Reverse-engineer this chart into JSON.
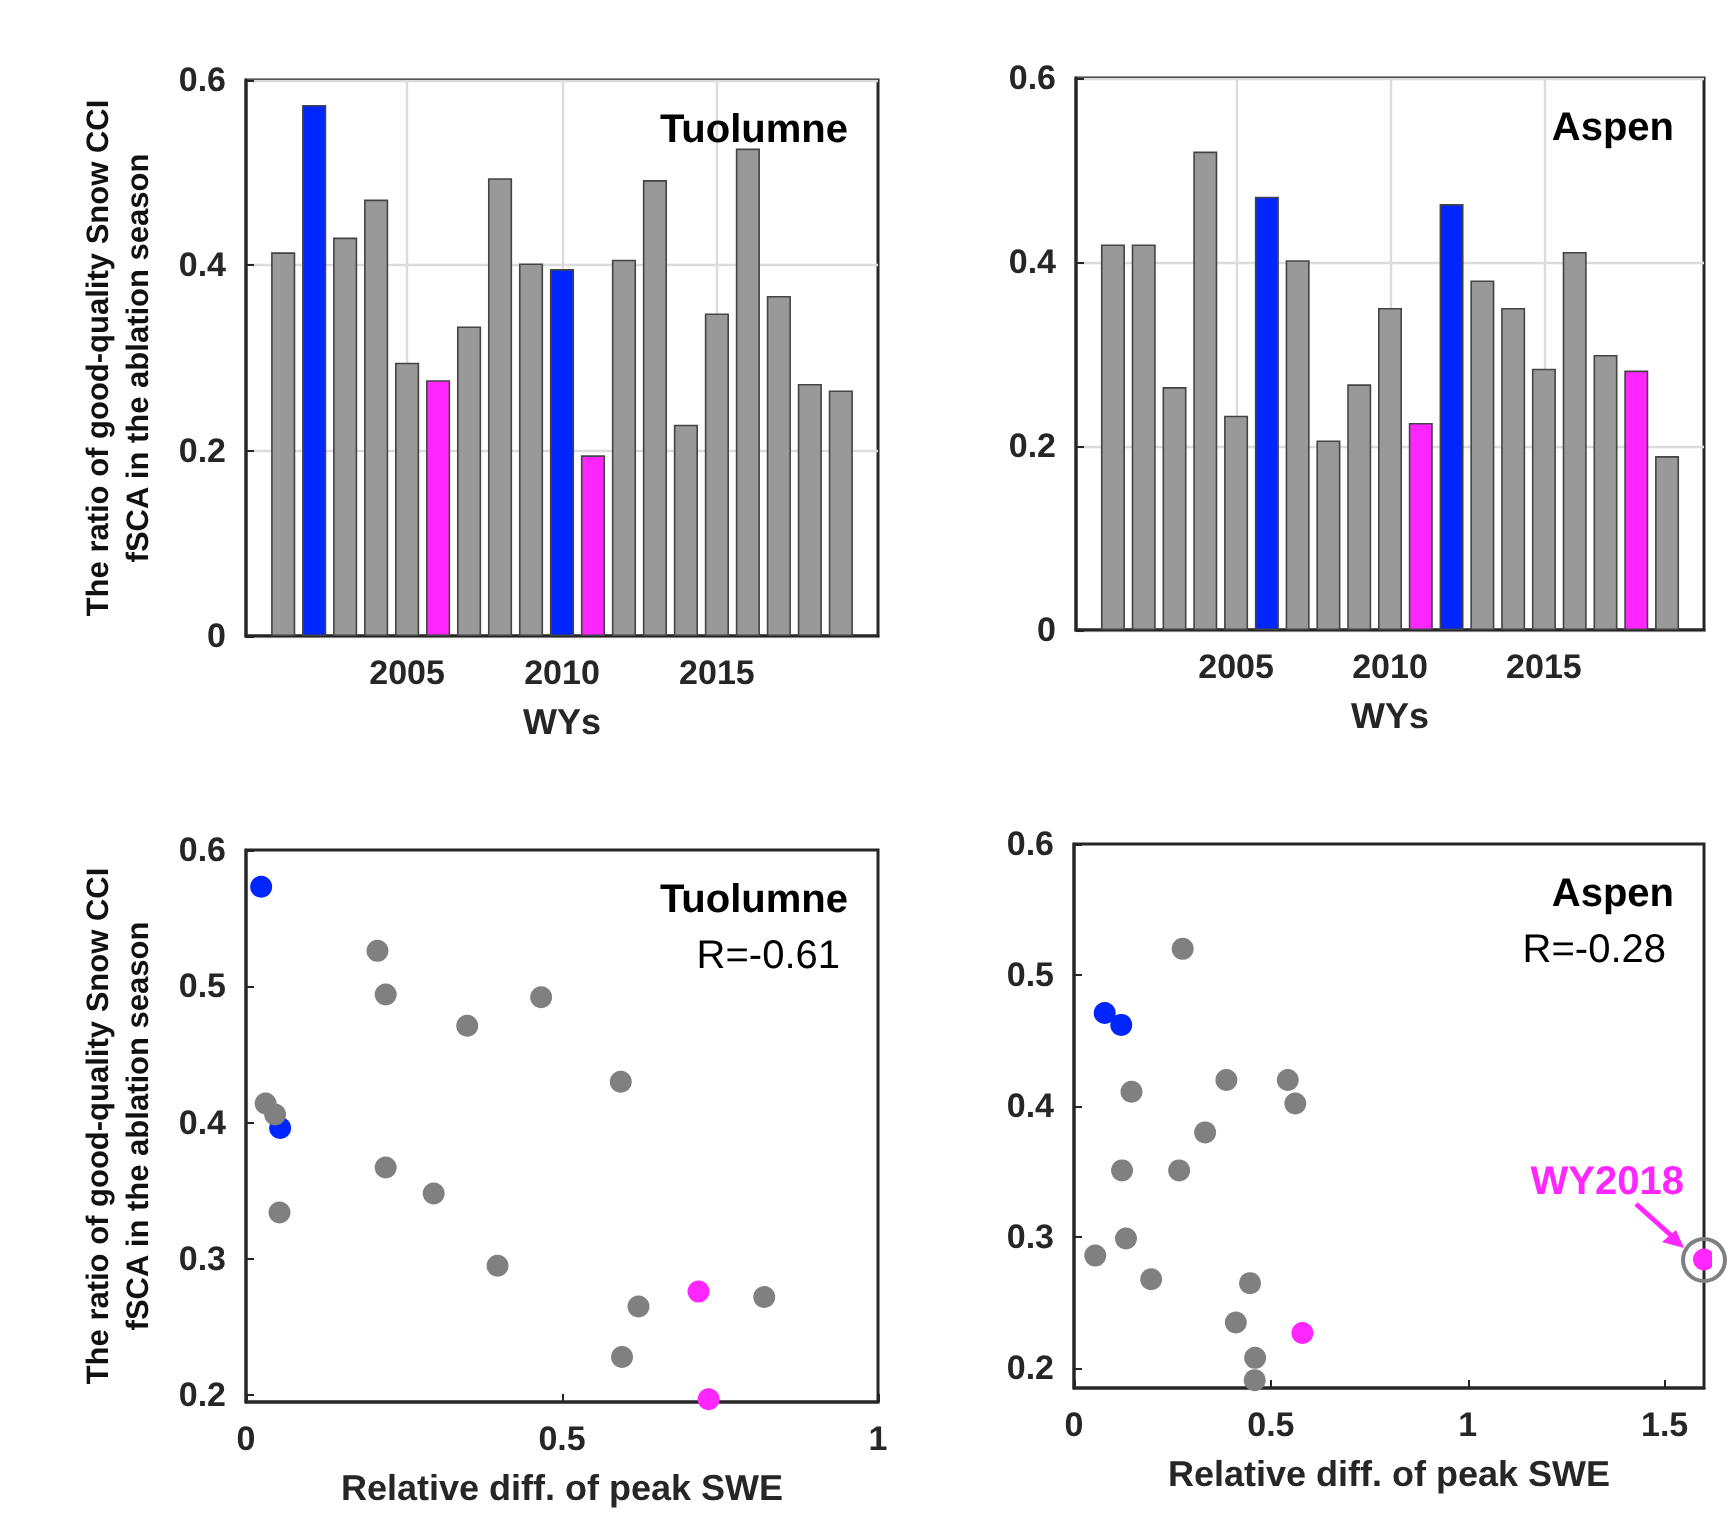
{
  "chart_data": [
    {
      "type": "bar",
      "title": "Tuolumne",
      "xlabel": "WYs",
      "ylabel": "The ratio of good-quality Snow CCI fSCA in the ablation season",
      "x": [
        2001,
        2002,
        2003,
        2004,
        2005,
        2006,
        2007,
        2008,
        2009,
        2010,
        2011,
        2012,
        2013,
        2014,
        2015,
        2016,
        2017,
        2018,
        2019
      ],
      "values": [
        0.414,
        0.573,
        0.43,
        0.471,
        0.295,
        0.276,
        0.334,
        0.494,
        0.402,
        0.396,
        0.195,
        0.406,
        0.492,
        0.228,
        0.348,
        0.526,
        0.367,
        0.272,
        0.265
      ],
      "colors": [
        "#999999",
        "#0026ff",
        "#999999",
        "#999999",
        "#999999",
        "#ff26ff",
        "#999999",
        "#999999",
        "#999999",
        "#0026ff",
        "#ff26ff",
        "#999999",
        "#999999",
        "#999999",
        "#999999",
        "#999999",
        "#999999",
        "#999999",
        "#999999"
      ],
      "xlim": [
        1999.8,
        2020.2
      ],
      "xticks": [
        2005,
        2010,
        2015
      ],
      "ylim": [
        0,
        0.6
      ],
      "yticks": [
        0,
        0.2,
        0.4,
        0.6
      ],
      "grid": true
    },
    {
      "type": "bar",
      "title": "Aspen",
      "xlabel": "WYs",
      "x": [
        2001,
        2002,
        2003,
        2004,
        2005,
        2006,
        2007,
        2008,
        2009,
        2010,
        2011,
        2012,
        2013,
        2014,
        2015,
        2016,
        2017,
        2018,
        2019
      ],
      "values": [
        0.419,
        0.419,
        0.264,
        0.52,
        0.233,
        0.471,
        0.402,
        0.206,
        0.267,
        0.35,
        0.225,
        0.463,
        0.38,
        0.35,
        0.284,
        0.411,
        0.299,
        0.282,
        0.189
      ],
      "colors": [
        "#999999",
        "#999999",
        "#999999",
        "#999999",
        "#999999",
        "#0026ff",
        "#999999",
        "#999999",
        "#999999",
        "#999999",
        "#ff26ff",
        "#0026ff",
        "#999999",
        "#999999",
        "#999999",
        "#999999",
        "#999999",
        "#ff26ff",
        "#999999"
      ],
      "xlim": [
        1999.8,
        2020.2
      ],
      "xticks": [
        2005,
        2010,
        2015
      ],
      "ylim": [
        0,
        0.6
      ],
      "yticks": [
        0,
        0.2,
        0.4,
        0.6
      ],
      "grid": true
    },
    {
      "type": "scatter",
      "title": "Tuolumne",
      "annotations": [
        "R=-0.61"
      ],
      "xlabel": "Relative diff. of peak SWE",
      "ylabel": "The ratio of good-quality Snow CCI fSCA in the ablation season",
      "x": [
        0.024,
        0.054,
        0.208,
        0.221,
        0.35,
        0.467,
        0.593,
        0.031,
        0.04,
        0.046,
        0.221,
        0.297,
        0.053,
        0.398,
        0.621,
        0.595,
        0.82,
        0.716,
        0.732
      ],
      "values": [
        0.573,
        0.396,
        0.526,
        0.494,
        0.471,
        0.492,
        0.43,
        0.414,
        null,
        0.406,
        0.367,
        0.348,
        0.334,
        0.295,
        0.265,
        0.228,
        0.272,
        0.276,
        0.197
      ],
      "colors": [
        "#0026ff",
        "#0026ff",
        "#808080",
        "#808080",
        "#808080",
        "#808080",
        "#808080",
        "#808080",
        "#808080",
        "#808080",
        "#808080",
        "#808080",
        "#808080",
        "#808080",
        "#808080",
        "#808080",
        "#808080",
        "#ff26ff",
        "#ff26ff"
      ],
      "xlim": [
        0,
        1
      ],
      "xticks": [
        0,
        0.5,
        1
      ],
      "ylim": [
        0.195,
        0.6
      ],
      "yticks": [
        0.2,
        0.3,
        0.4,
        0.5,
        0.6
      ],
      "grid": false,
      "marker": "circle"
    },
    {
      "type": "scatter",
      "title": "Aspen",
      "annotations": [
        "R=-0.28",
        {
          "text": "WY2018",
          "x": 1.6,
          "y": 0.283
        }
      ],
      "xlabel": "Relative diff. of peak SWE",
      "x": [
        0.276,
        0.078,
        0.12,
        0.146,
        0.387,
        0.543,
        0.562,
        0.333,
        0.122,
        0.267,
        0.132,
        0.054,
        0.196,
        0.447,
        0.411,
        0.46,
        0.459,
        0.58,
        1.6
      ],
      "values": [
        0.52,
        0.471,
        0.462,
        0.411,
        0.42,
        0.42,
        0.402,
        0.38,
        0.351,
        0.351,
        0.299,
        0.286,
        0.268,
        0.265,
        0.235,
        0.208,
        0.191,
        0.227,
        0.283
      ],
      "colors": [
        "#808080",
        "#0026ff",
        "#0026ff",
        "#808080",
        "#808080",
        "#808080",
        "#808080",
        "#808080",
        "#808080",
        "#808080",
        "#808080",
        "#808080",
        "#808080",
        "#808080",
        "#808080",
        "#808080",
        "#808080",
        "#ff26ff",
        "#ff26ff"
      ],
      "xlim": [
        0,
        1.6
      ],
      "xticks": [
        0,
        0.5,
        1,
        1.5
      ],
      "ylim": [
        0.185,
        0.6
      ],
      "yticks": [
        0.2,
        0.3,
        0.4,
        0.5,
        0.6
      ],
      "grid": false,
      "marker": "circle"
    }
  ]
}
